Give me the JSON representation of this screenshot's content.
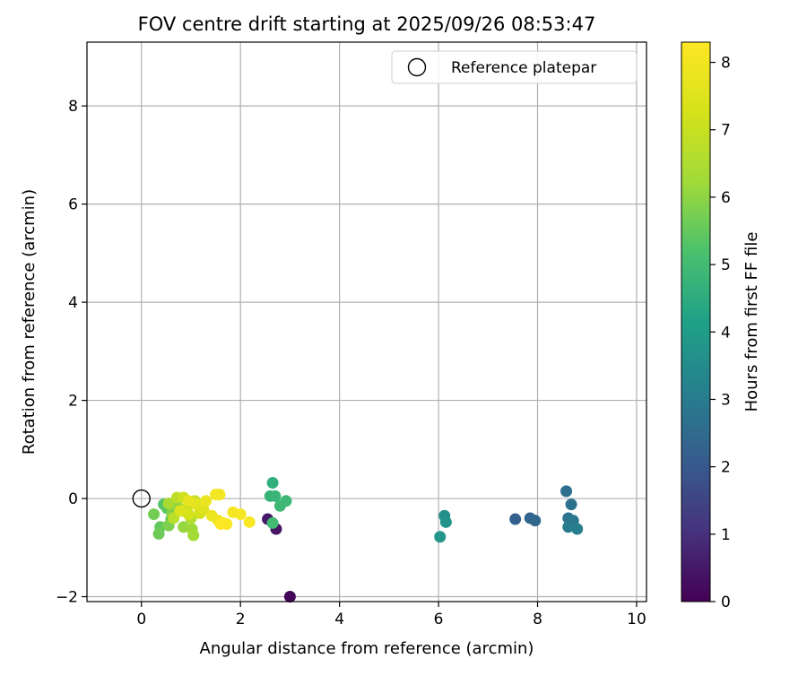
{
  "chart_data": {
    "type": "scatter",
    "title": "FOV centre drift starting at 2025/09/26 08:53:47",
    "xlabel": "Angular distance from reference (arcmin)",
    "ylabel": "Rotation from reference (arcmin)",
    "xlim": [
      -1.1,
      10.2
    ],
    "ylim": [
      -2.1,
      9.3
    ],
    "xticks": [
      0,
      2,
      4,
      6,
      8,
      10
    ],
    "yticks": [
      -2,
      0,
      2,
      4,
      6,
      8
    ],
    "xtick_labels": [
      "0",
      "2",
      "4",
      "6",
      "8",
      "10"
    ],
    "ytick_labels": [
      "−2",
      "0",
      "2",
      "4",
      "6",
      "8"
    ],
    "grid": true,
    "legend": {
      "location": "top-right",
      "entries": [
        "Reference platepar"
      ]
    },
    "reference_point": {
      "x": 0,
      "y": 0
    },
    "colorbar": {
      "label": "Hours from first FF file",
      "colormap": "viridis",
      "range": [
        0,
        8.3
      ],
      "ticks": [
        0,
        1,
        2,
        3,
        4,
        5,
        6,
        7,
        8
      ],
      "tick_labels": [
        "0",
        "1",
        "2",
        "3",
        "4",
        "5",
        "6",
        "7",
        "8"
      ]
    },
    "points": [
      {
        "x": 3.0,
        "y": -2.0,
        "h": 0.1
      },
      {
        "x": 2.72,
        "y": -0.62,
        "h": 0.4
      },
      {
        "x": 2.55,
        "y": -0.42,
        "h": 0.5
      },
      {
        "x": 7.55,
        "y": -0.42,
        "h": 2.2
      },
      {
        "x": 7.85,
        "y": -0.4,
        "h": 2.3
      },
      {
        "x": 7.95,
        "y": -0.45,
        "h": 2.4
      },
      {
        "x": 8.58,
        "y": 0.15,
        "h": 2.6
      },
      {
        "x": 8.68,
        "y": -0.12,
        "h": 2.7
      },
      {
        "x": 8.62,
        "y": -0.4,
        "h": 2.8
      },
      {
        "x": 8.72,
        "y": -0.45,
        "h": 2.9
      },
      {
        "x": 8.62,
        "y": -0.58,
        "h": 3.0
      },
      {
        "x": 8.8,
        "y": -0.62,
        "h": 3.1
      },
      {
        "x": 6.12,
        "y": -0.35,
        "h": 3.6
      },
      {
        "x": 6.15,
        "y": -0.48,
        "h": 3.7
      },
      {
        "x": 6.03,
        "y": -0.78,
        "h": 3.8
      },
      {
        "x": 2.65,
        "y": 0.32,
        "h": 4.6
      },
      {
        "x": 2.6,
        "y": 0.05,
        "h": 4.7
      },
      {
        "x": 2.7,
        "y": 0.05,
        "h": 4.8
      },
      {
        "x": 2.8,
        "y": -0.15,
        "h": 4.9
      },
      {
        "x": 2.92,
        "y": -0.05,
        "h": 4.9
      },
      {
        "x": 2.65,
        "y": -0.5,
        "h": 5.0
      },
      {
        "x": 0.45,
        "y": -0.12,
        "h": 5.3
      },
      {
        "x": 0.52,
        "y": -0.2,
        "h": 5.4
      },
      {
        "x": 0.6,
        "y": -0.42,
        "h": 5.5
      },
      {
        "x": 0.38,
        "y": -0.58,
        "h": 5.5
      },
      {
        "x": 0.35,
        "y": -0.72,
        "h": 5.6
      },
      {
        "x": 0.25,
        "y": -0.32,
        "h": 5.7
      },
      {
        "x": 0.55,
        "y": -0.55,
        "h": 5.8
      },
      {
        "x": 0.62,
        "y": -0.3,
        "h": 5.9
      },
      {
        "x": 0.7,
        "y": -0.1,
        "h": 6.0
      },
      {
        "x": 0.85,
        "y": -0.58,
        "h": 6.1
      },
      {
        "x": 1.02,
        "y": -0.62,
        "h": 6.2
      },
      {
        "x": 1.05,
        "y": -0.75,
        "h": 6.3
      },
      {
        "x": 0.55,
        "y": -0.1,
        "h": 6.4
      },
      {
        "x": 0.8,
        "y": -0.25,
        "h": 6.5
      },
      {
        "x": 1.0,
        "y": -0.4,
        "h": 6.6
      },
      {
        "x": 0.65,
        "y": -0.4,
        "h": 6.7
      },
      {
        "x": 0.72,
        "y": 0.02,
        "h": 6.8
      },
      {
        "x": 0.9,
        "y": -0.2,
        "h": 6.9
      },
      {
        "x": 1.08,
        "y": -0.05,
        "h": 7.0
      },
      {
        "x": 0.85,
        "y": 0.02,
        "h": 7.1
      },
      {
        "x": 1.18,
        "y": -0.3,
        "h": 7.2
      },
      {
        "x": 0.95,
        "y": -0.32,
        "h": 7.3
      },
      {
        "x": 0.78,
        "y": -0.25,
        "h": 7.4
      },
      {
        "x": 1.25,
        "y": -0.22,
        "h": 7.5
      },
      {
        "x": 1.1,
        "y": -0.12,
        "h": 7.6
      },
      {
        "x": 0.95,
        "y": -0.05,
        "h": 7.7
      },
      {
        "x": 1.3,
        "y": -0.05,
        "h": 7.8
      },
      {
        "x": 1.42,
        "y": -0.35,
        "h": 7.85
      },
      {
        "x": 1.55,
        "y": -0.45,
        "h": 7.9
      },
      {
        "x": 1.65,
        "y": -0.5,
        "h": 7.95
      },
      {
        "x": 1.5,
        "y": 0.08,
        "h": 8.0
      },
      {
        "x": 1.58,
        "y": 0.08,
        "h": 8.05
      },
      {
        "x": 1.85,
        "y": -0.28,
        "h": 8.1
      },
      {
        "x": 2.0,
        "y": -0.32,
        "h": 8.15
      },
      {
        "x": 2.18,
        "y": -0.48,
        "h": 8.2
      },
      {
        "x": 1.72,
        "y": -0.52,
        "h": 8.25
      },
      {
        "x": 1.6,
        "y": -0.52,
        "h": 8.25
      }
    ]
  }
}
